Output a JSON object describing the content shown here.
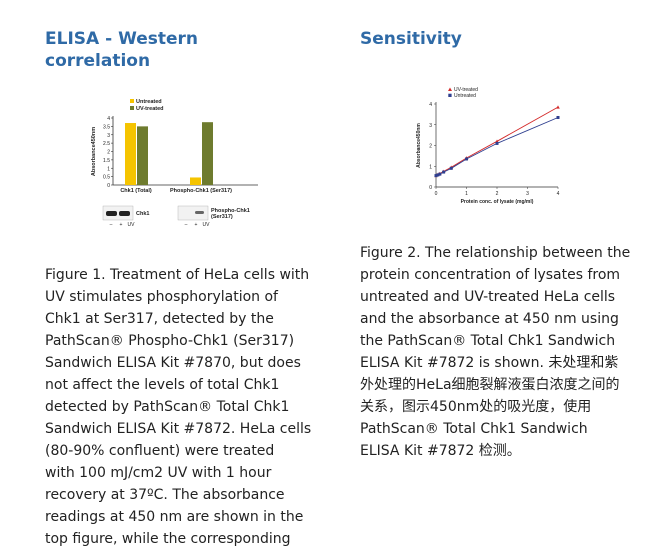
{
  "left": {
    "heading": "ELISA - Western correlation",
    "heading_line1": "ELISA - Western",
    "heading_line2": "correlation",
    "caption_lines": [
      "Figure 1. Treatment of HeLa cells with",
      "UV stimulates phosphorylation of",
      "Chk1 at Ser317, detected by the",
      "PathScan® Phospho-Chk1 (Ser317)",
      "Sandwich ELISA Kit #7870, but does",
      "not affect the levels of total Chk1",
      "detected by PathScan® Total Chk1",
      "Sandwich ELISA Kit #7872. HeLa cells",
      "(80-90% confluent) were treated",
      "with 100 mJ/cm2 UV with 1 hour",
      "recovery at 37ºC. The absorbance",
      "readings at 450 nm are shown in the",
      "top figure, while the corresponding"
    ]
  },
  "right": {
    "heading": "Sensitivity",
    "caption_lines": [
      "Figure 2. The relationship between the",
      "protein concentration of lysates from",
      "untreated and UV-treated HeLa cells",
      "and the absorbance at 450 nm using",
      "the PathScan® Total Chk1 Sandwich",
      "ELISA Kit #7872 is shown. 未处理和紫",
      "外处理的HeLa细胞裂解液蛋白浓度之间的",
      "关系，图示450nm处的吸光度，使用",
      "PathScan® Total Chk1 Sandwich",
      "ELISA Kit #7872 检测。"
    ]
  },
  "chart_data": [
    {
      "type": "bar",
      "ylabel": "Absorbance450nm",
      "ylim": [
        0,
        4
      ],
      "yticks": [
        "0",
        "0.5",
        "1",
        "1.5",
        "2",
        "2.5",
        "3",
        "3.5",
        "4"
      ],
      "categories": [
        "Chk1 (Total)",
        "Phospho-Chk1 (Ser317)"
      ],
      "series": [
        {
          "name": "Untreated",
          "color": "#f5c400",
          "values": [
            3.7,
            0.45
          ]
        },
        {
          "name": "UV-treated",
          "color": "#6e7b2e",
          "values": [
            3.5,
            3.75
          ]
        }
      ],
      "legend": "top-left",
      "blots": [
        {
          "label": "Chk1",
          "lanes": [
            "–",
            "+",
            "UV"
          ]
        },
        {
          "label": "Phospho-Chk1 (Ser317)",
          "lanes": [
            "–",
            "+",
            "UV"
          ]
        }
      ]
    },
    {
      "type": "line",
      "xlabel": "Protein conc. of lysate (mg/ml)",
      "ylabel": "Absorbance450nm",
      "xlim": [
        0,
        4
      ],
      "ylim": [
        0,
        4
      ],
      "xticks": [
        "0",
        "1",
        "2",
        "3",
        "4"
      ],
      "yticks": [
        "0",
        "1",
        "2",
        "3",
        "4"
      ],
      "legend": "top-left",
      "series": [
        {
          "name": "UV-treated",
          "color": "#d42a2a",
          "marker": "triangle",
          "x": [
            0,
            0.06,
            0.125,
            0.25,
            0.5,
            1,
            2,
            4
          ],
          "y": [
            0.55,
            0.6,
            0.65,
            0.75,
            0.95,
            1.4,
            2.2,
            3.85
          ]
        },
        {
          "name": "Untreated",
          "color": "#2f3f8f",
          "marker": "square",
          "x": [
            0,
            0.06,
            0.125,
            0.25,
            0.5,
            1,
            2,
            4
          ],
          "y": [
            0.55,
            0.58,
            0.62,
            0.72,
            0.9,
            1.35,
            2.1,
            3.35
          ]
        }
      ]
    }
  ]
}
